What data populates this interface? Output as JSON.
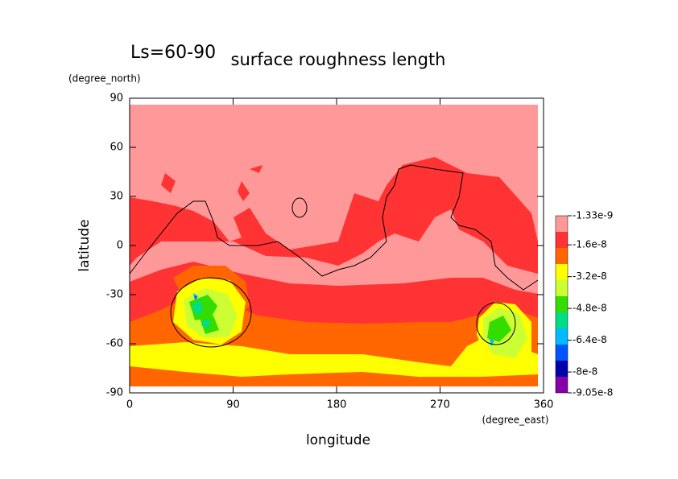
{
  "chart_data": {
    "type": "contour",
    "title": "surface roughness length",
    "subtitle": "Ls=60-90",
    "x_label": "longitude",
    "y_label": "latitude",
    "x_unit": "(degree_east)",
    "y_unit": "(degree_north)",
    "xlim": [
      0,
      360
    ],
    "ylim": [
      -90,
      90
    ],
    "xticks": [
      0,
      90,
      180,
      270,
      360
    ],
    "yticks": [
      -90,
      -60,
      -30,
      0,
      30,
      60,
      90
    ],
    "colorbar": {
      "lim": [
        -9.05e-08,
        -1.33e-09
      ],
      "ticks": [
        -1.33e-09,
        -1.6e-08,
        -3.2e-08,
        -4.8e-08,
        -6.4e-08,
        -8e-08,
        -9.05e-08
      ],
      "colors": [
        "#ff9999",
        "#ff3333",
        "#ff6600",
        "#ffff00",
        "#ccff33",
        "#33dd00",
        "#00dd88",
        "#00bbff",
        "#0055ff",
        "#0000aa",
        "#8800aa"
      ]
    }
  }
}
